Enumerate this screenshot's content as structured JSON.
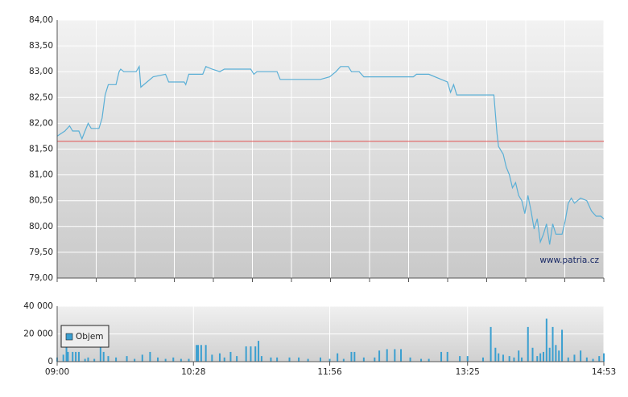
{
  "chart_data": [
    {
      "type": "line",
      "color": "#5aafd6",
      "x": [
        "09:00",
        "09:05",
        "09:08",
        "09:10",
        "09:14",
        "09:16",
        "09:18",
        "09:20",
        "09:22",
        "09:27",
        "09:29",
        "09:31",
        "09:33",
        "09:38",
        "09:40",
        "09:41",
        "09:43",
        "09:51",
        "09:53",
        "09:54",
        "09:58",
        "10:02",
        "10:10",
        "10:12",
        "10:22",
        "10:23",
        "10:25",
        "10:34",
        "10:36",
        "10:40",
        "10:45",
        "10:48",
        "11:05",
        "11:07",
        "11:09",
        "11:22",
        "11:24",
        "11:50",
        "11:56",
        "12:00",
        "12:03",
        "12:08",
        "12:10",
        "12:15",
        "12:18",
        "12:50",
        "12:52",
        "13:00",
        "13:08",
        "13:12",
        "13:14",
        "13:16",
        "13:18",
        "13:42",
        "13:44",
        "13:45",
        "13:48",
        "13:50",
        "13:52",
        "13:54",
        "13:56",
        "13:58",
        "14:00",
        "14:02",
        "14:04",
        "14:06",
        "14:08",
        "14:10",
        "14:12",
        "14:14",
        "14:16",
        "14:18",
        "14:20",
        "14:22",
        "14:26",
        "14:28",
        "14:30",
        "14:32",
        "14:34",
        "14:38",
        "14:42",
        "14:45",
        "14:48",
        "14:51",
        "14:53"
      ],
      "values": [
        81.75,
        81.85,
        81.95,
        81.85,
        81.85,
        81.7,
        81.85,
        82.0,
        81.9,
        81.9,
        82.1,
        82.55,
        82.75,
        82.75,
        83.0,
        83.05,
        83.0,
        83.0,
        83.1,
        82.7,
        82.8,
        82.9,
        82.95,
        82.8,
        82.8,
        82.75,
        82.95,
        82.95,
        83.1,
        83.05,
        83.0,
        83.05,
        83.05,
        82.95,
        83.0,
        83.0,
        82.85,
        82.85,
        82.9,
        83.0,
        83.1,
        83.1,
        83.0,
        83.0,
        82.9,
        82.9,
        82.95,
        82.95,
        82.85,
        82.8,
        82.6,
        82.75,
        82.55,
        82.55,
        81.8,
        81.55,
        81.4,
        81.15,
        81.0,
        80.75,
        80.85,
        80.6,
        80.5,
        80.25,
        80.6,
        80.3,
        79.95,
        80.15,
        79.7,
        79.85,
        80.05,
        79.65,
        80.05,
        79.85,
        79.85,
        80.1,
        80.45,
        80.55,
        80.45,
        80.55,
        80.5,
        80.3,
        80.2,
        80.2,
        80.15
      ],
      "xlim": [
        "09:00",
        "14:53"
      ],
      "ylim": [
        79,
        84
      ],
      "yticks": [
        {
          "value": 79,
          "label": "79,00"
        },
        {
          "value": 79.5,
          "label": "79,50"
        },
        {
          "value": 80,
          "label": "80,00"
        },
        {
          "value": 80.5,
          "label": "80,50"
        },
        {
          "value": 81,
          "label": "81,00"
        },
        {
          "value": 81.5,
          "label": "81,50"
        },
        {
          "value": 82,
          "label": "82,00"
        },
        {
          "value": 82.5,
          "label": "82,50"
        },
        {
          "value": 83,
          "label": "83,00"
        },
        {
          "value": 83.5,
          "label": "83,50"
        },
        {
          "value": 84,
          "label": "84,00"
        }
      ],
      "reference_line": {
        "value": 81.65,
        "color": "#e05050"
      },
      "annotation": "www.patria.cz",
      "grid": true
    },
    {
      "type": "bar",
      "x": [
        "09:00",
        "09:04",
        "09:06",
        "09:07",
        "09:10",
        "09:12",
        "09:14",
        "09:18",
        "09:20",
        "09:24",
        "09:28",
        "09:30",
        "09:33",
        "09:38",
        "09:45",
        "09:50",
        "09:55",
        "10:00",
        "10:05",
        "10:10",
        "10:15",
        "10:20",
        "10:25",
        "10:30",
        "10:31",
        "10:33",
        "10:36",
        "10:40",
        "10:45",
        "10:48",
        "10:52",
        "10:56",
        "11:02",
        "11:05",
        "11:08",
        "11:10",
        "11:12",
        "11:18",
        "11:22",
        "11:30",
        "11:36",
        "11:42",
        "11:50",
        "11:56",
        "12:01",
        "12:05",
        "12:10",
        "12:12",
        "12:18",
        "12:25",
        "12:28",
        "12:33",
        "12:38",
        "12:42",
        "12:48",
        "12:55",
        "13:00",
        "13:08",
        "13:12",
        "13:20",
        "13:25",
        "13:35",
        "13:40",
        "13:43",
        "13:45",
        "13:48",
        "13:52",
        "13:55",
        "13:58",
        "14:00",
        "14:04",
        "14:07",
        "14:10",
        "14:12",
        "14:14",
        "14:16",
        "14:18",
        "14:20",
        "14:22",
        "14:24",
        "14:26",
        "14:30",
        "14:34",
        "14:38",
        "14:42",
        "14:46",
        "14:50",
        "14:53"
      ],
      "series": [
        {
          "name": "Objem",
          "color": "#3a9fd0",
          "values": [
            3000,
            5000,
            15000,
            7000,
            7000,
            7000,
            7000,
            2000,
            3000,
            2000,
            12000,
            7000,
            4000,
            3000,
            4000,
            2000,
            5000,
            7000,
            3000,
            2000,
            3000,
            2000,
            2000,
            12000,
            12000,
            12000,
            12000,
            5000,
            6000,
            3000,
            7000,
            4000,
            11000,
            11000,
            11000,
            15000,
            4000,
            3000,
            3000,
            3000,
            3000,
            2000,
            3000,
            2000,
            6000,
            2000,
            7000,
            7000,
            3000,
            3000,
            8000,
            9000,
            9000,
            9000,
            3000,
            2000,
            2000,
            7000,
            7000,
            4000,
            4000,
            3000,
            25000,
            10000,
            6000,
            5000,
            4000,
            3000,
            8000,
            3000,
            25000,
            10000,
            4000,
            6000,
            7000,
            31000,
            10000,
            25000,
            12000,
            8000,
            23000,
            3000,
            5000,
            8000,
            3000,
            2000,
            4000,
            6000
          ]
        }
      ],
      "xlim": [
        "09:00",
        "14:53"
      ],
      "xticks": [
        "09:00",
        "10:28",
        "11:56",
        "13:25",
        "14:53"
      ],
      "ylim": [
        0,
        40000
      ],
      "yticks": [
        0,
        {
          "value": 20000,
          "label": "20 000"
        },
        {
          "value": 40000,
          "label": "40 000"
        }
      ],
      "grid": true
    }
  ]
}
